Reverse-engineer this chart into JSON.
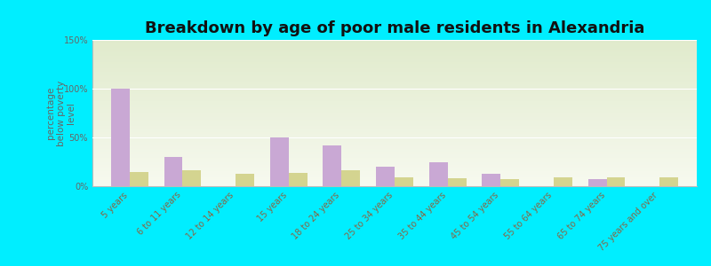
{
  "title": "Breakdown by age of poor male residents in Alexandria",
  "ylabel": "percentage\nbelow poverty\nlevel",
  "categories": [
    "5 years",
    "6 to 11 years",
    "12 to 14 years",
    "15 years",
    "18 to 24 years",
    "25 to 34 years",
    "35 to 44 years",
    "45 to 54 years",
    "55 to 64 years",
    "65 to 74 years",
    "75 years and over"
  ],
  "alexandria_values": [
    100,
    30,
    0,
    50,
    42,
    20,
    25,
    13,
    0,
    7,
    0
  ],
  "pennsylvania_values": [
    15,
    16,
    13,
    14,
    16,
    9,
    8,
    7,
    9,
    9,
    9
  ],
  "alexandria_color": "#c9a8d4",
  "pennsylvania_color": "#d4d490",
  "ylim": [
    0,
    150
  ],
  "yticks": [
    0,
    50,
    100,
    150
  ],
  "ytick_labels": [
    "0%",
    "50%",
    "100%",
    "150%"
  ],
  "outer_bg": "#00eeff",
  "bar_width": 0.35,
  "title_fontsize": 13,
  "label_fontsize": 7.5,
  "tick_fontsize": 7,
  "legend_fontsize": 9,
  "tick_color": "#886644",
  "ylabel_color": "#666666"
}
